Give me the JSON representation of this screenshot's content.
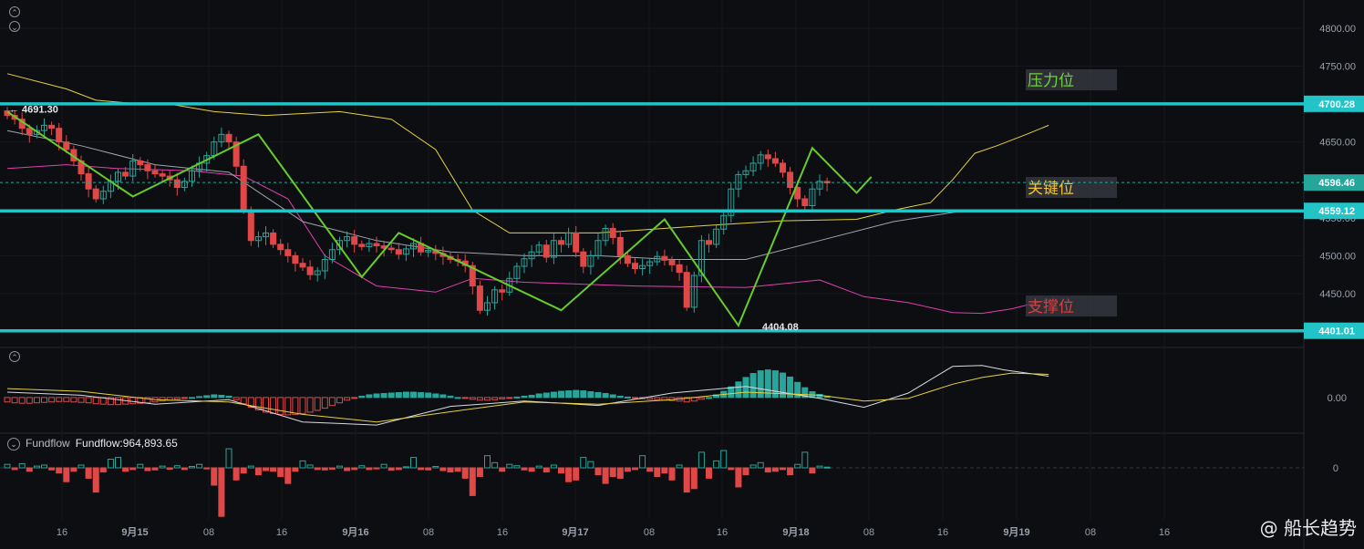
{
  "chart_data": {
    "type": "candlestick",
    "ylim": [
      4385,
      4830
    ],
    "y_ticks": [
      4450,
      4500,
      4550,
      4650,
      4750,
      4800
    ],
    "x_tick_labels": [
      "16",
      "9月15",
      "08",
      "16",
      "9月16",
      "08",
      "16",
      "9月17",
      "08",
      "16",
      "9月18",
      "08",
      "16",
      "9月19",
      "08",
      "16"
    ],
    "horizontal_levels": [
      {
        "value": 4700.28,
        "label": "4700.28",
        "zone_label": "压力位",
        "zone_color": "#6fd23a"
      },
      {
        "value": 4559.12,
        "label": "4559.12",
        "zone_label": "关键位",
        "zone_color": "#f2c230"
      },
      {
        "value": 4401.01,
        "label": "4401.01",
        "zone_label": "支撑位",
        "zone_color": "#e43a3a"
      }
    ],
    "current_price": {
      "value": 4596.46,
      "label": "4596.46"
    },
    "annotations": [
      {
        "text": "← 4691.30",
        "x": 0,
        "y": 4691.3
      },
      {
        "text": "4404.08",
        "x": 110,
        "y": 4404.08
      }
    ],
    "close": [
      4685,
      4680,
      4668,
      4660,
      4665,
      4672,
      4668,
      4650,
      4640,
      4625,
      4608,
      4588,
      4575,
      4585,
      4598,
      4610,
      4605,
      4625,
      4620,
      4612,
      4608,
      4605,
      4600,
      4590,
      4598,
      4612,
      4622,
      4632,
      4650,
      4660,
      4650,
      4618,
      4560,
      4520,
      4525,
      4530,
      4515,
      4508,
      4500,
      4490,
      4485,
      4475,
      4480,
      4495,
      4508,
      4520,
      4525,
      4515,
      4512,
      4516,
      4513,
      4510,
      4508,
      4502,
      4509,
      4516,
      4505,
      4507,
      4503,
      4499,
      4495,
      4493,
      4487,
      4460,
      4428,
      4438,
      4455,
      4452,
      4470,
      4486,
      4496,
      4505,
      4514,
      4498,
      4520,
      4515,
      4530,
      4505,
      4486,
      4500,
      4520,
      4536,
      4524,
      4500,
      4490,
      4483,
      4487,
      4492,
      4499,
      4494,
      4488,
      4478,
      4432,
      4474,
      4520,
      4515,
      4535,
      4553,
      4588,
      4607,
      4612,
      4622,
      4633,
      4628,
      4622,
      4610,
      4590,
      4575,
      4566,
      4588,
      4598,
      4596
    ],
    "open_prev_close": true,
    "ma_mid_points": [
      [
        0,
        4665
      ],
      [
        10,
        4645
      ],
      [
        20,
        4620
      ],
      [
        30,
        4610
      ],
      [
        40,
        4545
      ],
      [
        50,
        4520
      ],
      [
        60,
        4505
      ],
      [
        70,
        4500
      ],
      [
        80,
        4500
      ],
      [
        90,
        4495
      ],
      [
        100,
        4495
      ],
      [
        110,
        4520
      ],
      [
        120,
        4545
      ],
      [
        130,
        4560
      ]
    ],
    "boll_upper_points": [
      [
        0,
        4740
      ],
      [
        8,
        4720
      ],
      [
        12,
        4705
      ],
      [
        18,
        4700
      ],
      [
        22,
        4700
      ],
      [
        28,
        4690
      ],
      [
        35,
        4685
      ],
      [
        45,
        4690
      ],
      [
        52,
        4680
      ],
      [
        58,
        4640
      ],
      [
        63,
        4560
      ],
      [
        68,
        4530
      ],
      [
        80,
        4530
      ],
      [
        95,
        4540
      ],
      [
        105,
        4546
      ],
      [
        115,
        4548
      ],
      [
        120,
        4560
      ],
      [
        125,
        4570
      ],
      [
        128,
        4600
      ],
      [
        131,
        4635
      ],
      [
        134,
        4645
      ],
      [
        138,
        4660
      ],
      [
        141,
        4672
      ]
    ],
    "boll_lower_points": [
      [
        0,
        4615
      ],
      [
        8,
        4620
      ],
      [
        15,
        4615
      ],
      [
        25,
        4612
      ],
      [
        32,
        4605
      ],
      [
        38,
        4575
      ],
      [
        43,
        4500
      ],
      [
        50,
        4460
      ],
      [
        58,
        4452
      ],
      [
        63,
        4470
      ],
      [
        70,
        4465
      ],
      [
        85,
        4460
      ],
      [
        100,
        4458
      ],
      [
        110,
        4468
      ],
      [
        116,
        4446
      ],
      [
        122,
        4438
      ],
      [
        128,
        4425
      ],
      [
        132,
        4424
      ],
      [
        136,
        4430
      ],
      [
        141,
        4442
      ]
    ],
    "macd_hist": [
      -0.1,
      -0.12,
      -0.13,
      -0.13,
      -0.12,
      -0.11,
      -0.1,
      -0.09,
      -0.09,
      -0.1,
      -0.11,
      -0.12,
      -0.14,
      -0.15,
      -0.16,
      -0.16,
      -0.15,
      -0.14,
      -0.13,
      -0.12,
      -0.1,
      -0.08,
      -0.06,
      -0.04,
      -0.02,
      0.0,
      0.02,
      0.04,
      0.06,
      0.05,
      0.03,
      -0.05,
      -0.14,
      -0.22,
      -0.28,
      -0.33,
      -0.36,
      -0.38,
      -0.39,
      -0.38,
      -0.36,
      -0.33,
      -0.29,
      -0.24,
      -0.18,
      -0.12,
      -0.06,
      -0.01,
      0.03,
      0.06,
      0.08,
      0.09,
      0.1,
      0.11,
      0.12,
      0.12,
      0.11,
      0.1,
      0.08,
      0.06,
      0.03,
      0.0,
      -0.02,
      -0.04,
      -0.06,
      -0.06,
      -0.05,
      -0.03,
      -0.01,
      0.01,
      0.03,
      0.05,
      0.08,
      0.1,
      0.12,
      0.14,
      0.15,
      0.16,
      0.15,
      0.13,
      0.11,
      0.09,
      0.06,
      0.03,
      0.01,
      -0.02,
      -0.03,
      -0.04,
      -0.05,
      -0.06,
      -0.07,
      -0.08,
      -0.1,
      -0.08,
      -0.04,
      0.0,
      0.06,
      0.14,
      0.24,
      0.35,
      0.45,
      0.54,
      0.6,
      0.62,
      0.6,
      0.55,
      0.46,
      0.34,
      0.22,
      0.13,
      0.07,
      0.03
    ],
    "macd_dif_points": [
      [
        0,
        0.12
      ],
      [
        10,
        0.05
      ],
      [
        20,
        -0.15
      ],
      [
        30,
        -0.05
      ],
      [
        40,
        -0.55
      ],
      [
        50,
        -0.62
      ],
      [
        60,
        -0.2
      ],
      [
        70,
        -0.08
      ],
      [
        80,
        -0.18
      ],
      [
        90,
        0.1
      ],
      [
        100,
        0.25
      ],
      [
        110,
        -0.02
      ],
      [
        116,
        -0.22
      ],
      [
        122,
        0.1
      ],
      [
        128,
        0.7
      ],
      [
        132,
        0.72
      ],
      [
        135,
        0.62
      ],
      [
        141,
        0.48
      ]
    ],
    "macd_dea_points": [
      [
        0,
        0.2
      ],
      [
        10,
        0.14
      ],
      [
        20,
        -0.05
      ],
      [
        30,
        -0.1
      ],
      [
        40,
        -0.38
      ],
      [
        50,
        -0.55
      ],
      [
        60,
        -0.32
      ],
      [
        70,
        -0.1
      ],
      [
        80,
        -0.15
      ],
      [
        90,
        -0.05
      ],
      [
        100,
        0.12
      ],
      [
        110,
        0.05
      ],
      [
        116,
        -0.08
      ],
      [
        122,
        -0.02
      ],
      [
        128,
        0.3
      ],
      [
        132,
        0.45
      ],
      [
        136,
        0.55
      ],
      [
        141,
        0.52
      ]
    ],
    "macd_ylim": [
      -0.7,
      0.9
    ],
    "macd_zero_label": "0.00",
    "fundflow_label": "Fundflow",
    "fundflow_value": "Fundflow:964,893.65",
    "fundflow_zero_label": "0",
    "fundflow_values": [
      0.1,
      -0.05,
      0.12,
      -0.1,
      0.05,
      0.08,
      -0.06,
      -0.15,
      -0.4,
      -0.1,
      0.08,
      -0.3,
      -0.7,
      -0.12,
      0.25,
      0.3,
      -0.1,
      -0.05,
      0.1,
      -0.08,
      -0.06,
      0.05,
      -0.04,
      0.06,
      -0.05,
      0.04,
      0.1,
      -0.03,
      -0.5,
      -1.4,
      0.55,
      -0.35,
      -0.15,
      0.05,
      -0.2,
      -0.08,
      -0.1,
      -0.25,
      -0.45,
      -0.1,
      0.2,
      0.08,
      -0.05,
      -0.06,
      -0.04,
      0.05,
      -0.08,
      -0.05,
      0.06,
      -0.05,
      -0.03,
      0.1,
      -0.07,
      -0.05,
      0.03,
      0.3,
      -0.05,
      -0.06,
      0.04,
      -0.08,
      -0.12,
      -0.1,
      -0.3,
      -0.8,
      -0.25,
      0.35,
      0.15,
      -0.1,
      0.1,
      0.06,
      -0.06,
      -0.1,
      0.05,
      -0.12,
      0.08,
      -0.15,
      -0.4,
      -0.35,
      0.3,
      0.18,
      -0.2,
      -0.45,
      -0.25,
      -0.3,
      -0.1,
      -0.05,
      0.35,
      -0.1,
      -0.25,
      -0.15,
      -0.35,
      0.08,
      -0.7,
      -0.6,
      0.45,
      -0.3,
      0.2,
      0.5,
      -0.05,
      -0.55,
      -0.2,
      0.08,
      0.15,
      -0.12,
      -0.1,
      -0.05,
      -0.2,
      0.1,
      0.45,
      -0.15,
      0.05,
      0.02
    ],
    "watermark": "@ 船长趋势"
  }
}
